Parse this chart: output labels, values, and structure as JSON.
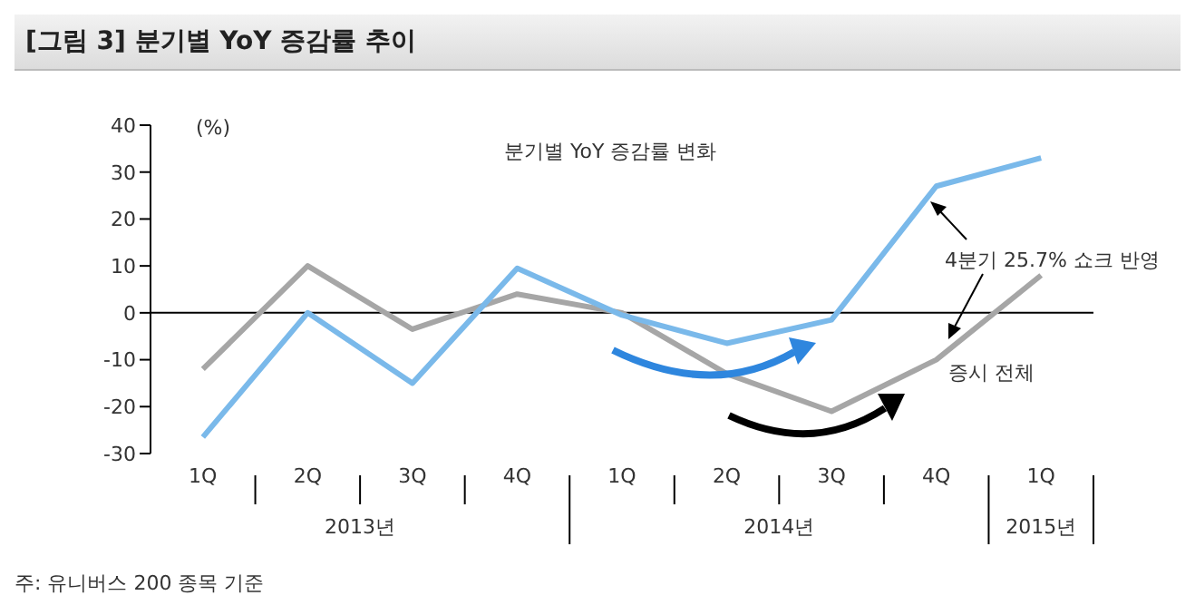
{
  "chart_data": {
    "type": "line",
    "title": "[그림 3] 분기별 YoY 증감률 추이",
    "ylabel": "(%)",
    "categories": [
      "1Q",
      "2Q",
      "3Q",
      "4Q",
      "1Q",
      "2Q",
      "3Q",
      "4Q",
      "1Q"
    ],
    "series": [
      {
        "name": "증시 전체",
        "color": "#a6a6a6",
        "values": [
          -12,
          10,
          -3.5,
          4,
          0,
          -13,
          -21,
          -10,
          8
        ]
      },
      {
        "color": "#7ab9ea",
        "values": [
          -26.5,
          0,
          -15,
          9.5,
          -0.5,
          -6.5,
          -1.5,
          27,
          33
        ]
      }
    ],
    "ylim": [
      -30,
      40
    ],
    "yticks": [
      -30,
      -20,
      -10,
      0,
      10,
      20,
      30,
      40
    ],
    "grid": false,
    "marker": "none",
    "line_style": "solid",
    "ref_lines": [
      {
        "axis": "y",
        "value": 0,
        "color": "#000000"
      }
    ],
    "annotations": [
      "분기별 YoY 증감률 변화",
      "4분기 25.7% 쇼크 반영",
      "2013년",
      "2014년",
      "2015년",
      "주: 유니버스 200 종목 기준"
    ]
  }
}
